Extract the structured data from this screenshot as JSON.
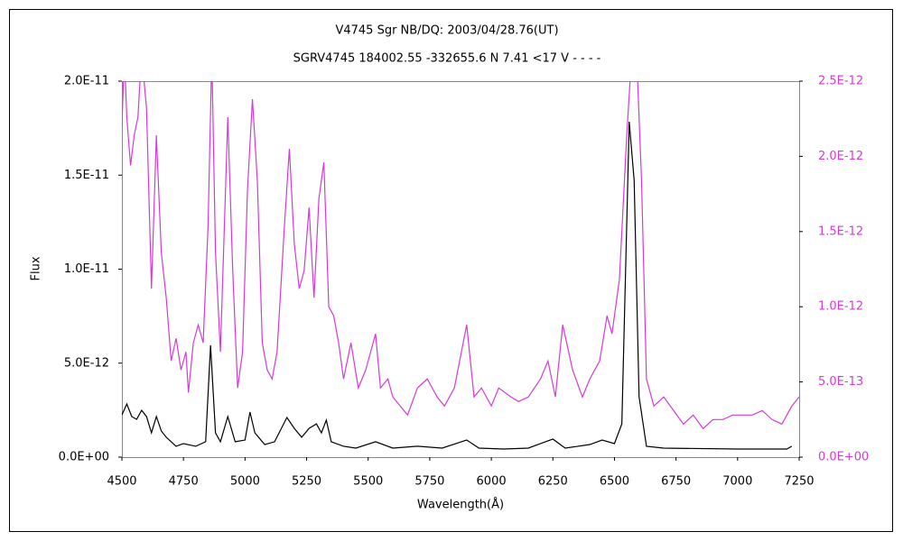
{
  "chart_data": {
    "type": "line",
    "title": "V4745 Sgr    NB/DQ:    2003/04/28.76(UT)",
    "subtitle": "SGRV4745 184002.55 -332655.6 N 7.41 <17 V - - - -",
    "xlabel": "Wavelength(Å)",
    "ylabel": "Flux",
    "xlim": [
      4500,
      7250
    ],
    "xticks": [
      4500,
      4750,
      5000,
      5250,
      5500,
      5750,
      6000,
      6250,
      6500,
      6750,
      7000,
      7250
    ],
    "ylim": [
      0,
      2e-11
    ],
    "yticks": [
      {
        "value": 0,
        "label": "0.0E+00"
      },
      {
        "value": 5e-12,
        "label": "5.0E-12"
      },
      {
        "value": 1e-11,
        "label": "1.0E-11"
      },
      {
        "value": 1.5e-11,
        "label": "1.5E-11"
      },
      {
        "value": 2e-11,
        "label": "2.0E-11"
      }
    ],
    "y2lim": [
      0,
      2.5e-12
    ],
    "y2ticks": [
      {
        "value": 0,
        "label": "0.0E+00"
      },
      {
        "value": 5e-13,
        "label": "5.0E-13"
      },
      {
        "value": 1e-12,
        "label": "1.0E-12"
      },
      {
        "value": 1.5e-12,
        "label": "1.5E-12"
      },
      {
        "value": 2e-12,
        "label": "2.0E-12"
      },
      {
        "value": 2.5e-12,
        "label": "2.5E-12"
      }
    ],
    "y2color": "#d63ad6",
    "series": [
      {
        "color": "#d63ad6",
        "axis": "y2",
        "x": [
          4500,
          4510,
          4520,
          4535,
          4550,
          4565,
          4580,
          4600,
          4620,
          4640,
          4660,
          4680,
          4700,
          4720,
          4740,
          4760,
          4770,
          4790,
          4810,
          4830,
          4850,
          4865,
          4880,
          4900,
          4930,
          4950,
          4970,
          4990,
          5010,
          5030,
          5050,
          5070,
          5090,
          5110,
          5130,
          5160,
          5180,
          5200,
          5220,
          5240,
          5260,
          5280,
          5300,
          5320,
          5340,
          5360,
          5380,
          5400,
          5430,
          5460,
          5490,
          5530,
          5550,
          5580,
          5600,
          5630,
          5660,
          5700,
          5740,
          5780,
          5810,
          5850,
          5900,
          5930,
          5960,
          6000,
          6030,
          6080,
          6110,
          6150,
          6200,
          6230,
          6260,
          6290,
          6330,
          6370,
          6400,
          6440,
          6470,
          6490,
          6520,
          6550,
          6570,
          6590,
          6610,
          6630,
          6660,
          6700,
          6740,
          6780,
          6820,
          6860,
          6900,
          6940,
          6980,
          7020,
          7060,
          7100,
          7140,
          7180,
          7220,
          7250
        ],
        "values": [
          2.2e-12,
          2.68e-12,
          2.26e-12,
          1.94e-12,
          2.14e-12,
          2.26e-12,
          2.68e-12,
          2.32e-12,
          1.12e-12,
          2.14e-12,
          1.36e-12,
          1.06e-12,
          6.4e-13,
          7.9e-13,
          5.8e-13,
          7e-13,
          4.3e-13,
          7.6e-13,
          8.8e-13,
          7.6e-13,
          1.54e-12,
          2.68e-12,
          1.36e-12,
          7e-13,
          2.26e-12,
          1.24e-12,
          4.6e-13,
          7e-13,
          1.78e-12,
          2.38e-12,
          1.84e-12,
          7.6e-13,
          5.8e-13,
          5.2e-13,
          7e-13,
          1.54e-12,
          2.05e-12,
          1.42e-12,
          1.12e-12,
          1.24e-12,
          1.66e-12,
          1.06e-12,
          1.72e-12,
          1.96e-12,
          1e-12,
          9.4e-13,
          7.6e-13,
          5.2e-13,
          7.6e-13,
          4.6e-13,
          5.8e-13,
          8.2e-13,
          4.6e-13,
          5.2e-13,
          4e-13,
          3.4e-13,
          2.8e-13,
          4.6e-13,
          5.2e-13,
          4e-13,
          3.4e-13,
          4.6e-13,
          8.8e-13,
          4e-13,
          4.6e-13,
          3.4e-13,
          4.6e-13,
          4e-13,
          3.7e-13,
          4e-13,
          5.2e-13,
          6.4e-13,
          4e-13,
          8.8e-13,
          5.8e-13,
          4e-13,
          5.2e-13,
          6.4e-13,
          9.4e-13,
          8.2e-13,
          1.18e-12,
          2.14e-12,
          2.68e-12,
          2.68e-12,
          1.84e-12,
          5.2e-13,
          3.4e-13,
          4e-13,
          3.1e-13,
          2.2e-13,
          2.8e-13,
          1.9e-13,
          2.5e-13,
          2.5e-13,
          2.8e-13,
          2.8e-13,
          2.8e-13,
          3.1e-13,
          2.5e-13,
          2.2e-13,
          3.4e-13,
          4e-13
        ]
      },
      {
        "color": "#000000",
        "x": [
          4500,
          4520,
          4540,
          4560,
          4580,
          4600,
          4620,
          4640,
          4660,
          4680,
          4700,
          4720,
          4750,
          4800,
          4840,
          4860,
          4880,
          4900,
          4930,
          4960,
          5000,
          5020,
          5040,
          5080,
          5120,
          5170,
          5200,
          5230,
          5260,
          5290,
          5310,
          5330,
          5350,
          5400,
          5450,
          5530,
          5600,
          5700,
          5800,
          5900,
          5950,
          6050,
          6150,
          6200,
          6250,
          6300,
          6400,
          6450,
          6500,
          6530,
          6560,
          6580,
          6600,
          6630,
          6700,
          7000,
          7200,
          7220
        ],
        "values": [
          2.25e-12,
          2.83e-12,
          2.16e-12,
          2.01e-12,
          2.49e-12,
          2.16e-12,
          1.29e-12,
          2.16e-12,
          1.39e-12,
          1.06e-12,
          8.2e-13,
          5.8e-13,
          7.2e-13,
          5.8e-13,
          8.2e-13,
          5.95e-12,
          1.29e-12,
          8.2e-13,
          2.16e-12,
          8.2e-13,
          9.1e-13,
          2.4e-12,
          1.29e-12,
          6.7e-13,
          8.2e-13,
          2.11e-12,
          1.53e-12,
          1.06e-12,
          1.53e-12,
          1.77e-12,
          1.29e-12,
          1.97e-12,
          8.2e-13,
          5.8e-13,
          4.8e-13,
          8.2e-13,
          4.8e-13,
          5.8e-13,
          4.8e-13,
          9.1e-13,
          4.8e-13,
          4.3e-13,
          4.8e-13,
          7.2e-13,
          9.6e-13,
          4.8e-13,
          6.7e-13,
          9.1e-13,
          7.2e-13,
          1.77e-12,
          1.784e-11,
          1.472e-11,
          3.21e-12,
          5.8e-13,
          4.8e-13,
          4.3e-13,
          4.3e-13,
          5.8e-13
        ]
      }
    ]
  }
}
